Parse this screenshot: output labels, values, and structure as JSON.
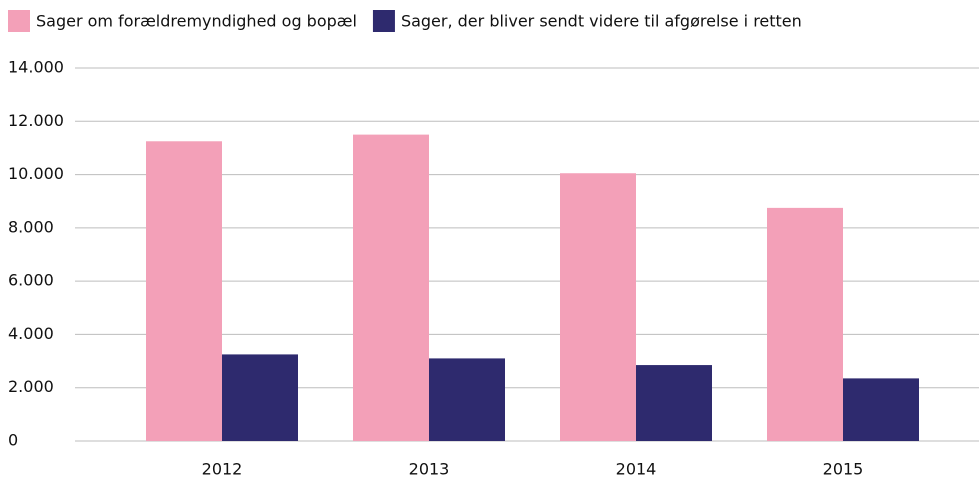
{
  "chart_data": {
    "type": "bar",
    "categories": [
      "2012",
      "2013",
      "2014",
      "2015"
    ],
    "series": [
      {
        "name": "Sager om forældremyndighed og bopæl",
        "color": "#f3a0b8",
        "values": [
          11250,
          11500,
          10050,
          8750
        ]
      },
      {
        "name": "Sager, der bliver sendt videre til afgørelse i retten",
        "color": "#2e2a6e",
        "values": [
          3250,
          3100,
          2850,
          2350
        ]
      }
    ],
    "ylim": [
      0,
      14000
    ],
    "yticks": [
      0,
      {
        "value": 2000,
        "label": "2.000"
      },
      {
        "value": 4000,
        "label": "4.000"
      },
      {
        "value": 6000,
        "label": "6.000"
      },
      {
        "value": 8000,
        "label": "8.000"
      },
      {
        "value": 10000,
        "label": "10.000"
      },
      {
        "value": 12000,
        "label": "12.000"
      },
      {
        "value": 14000,
        "label": "14.000"
      }
    ],
    "grid": true,
    "legend": "top"
  }
}
